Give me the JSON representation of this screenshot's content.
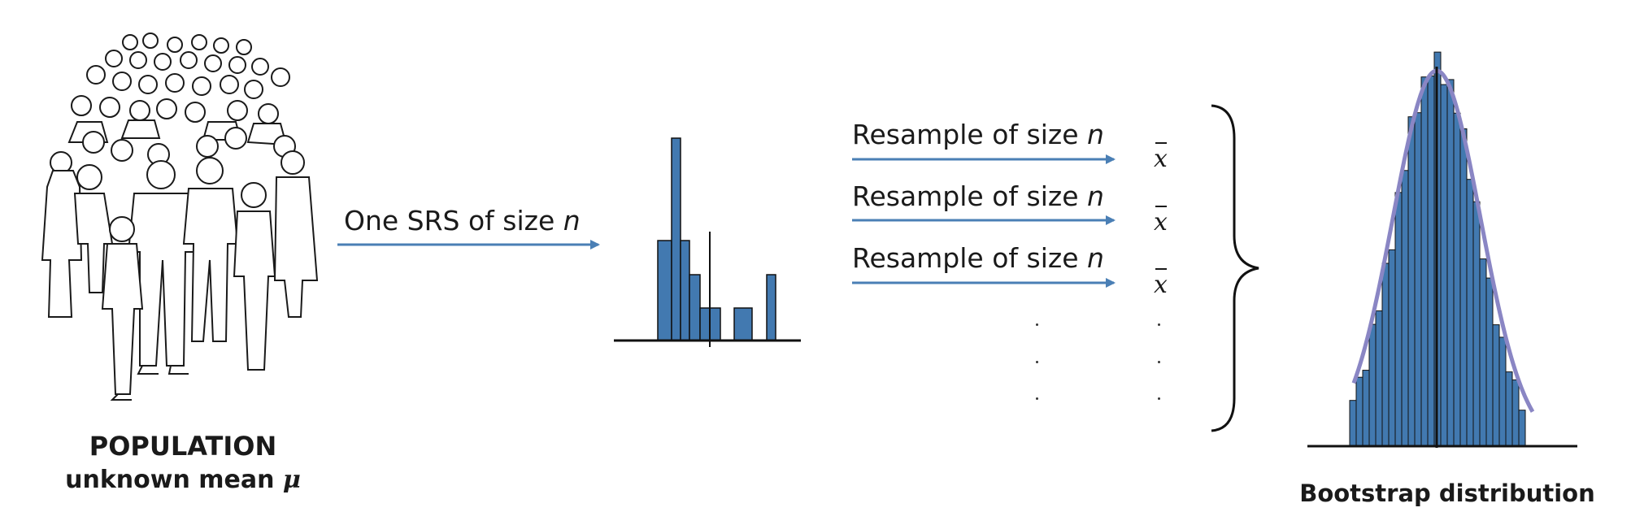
{
  "population": {
    "title": "POPULATION",
    "subtitle_text": "unknown mean",
    "subtitle_symbol": "μ"
  },
  "srs_arrow": {
    "text": "One SRS of size",
    "var": "n"
  },
  "resamples": [
    {
      "text": "Resample of size",
      "var": "n",
      "stat": "x"
    },
    {
      "text": "Resample of size",
      "var": "n",
      "stat": "x"
    },
    {
      "text": "Resample of size",
      "var": "n",
      "stat": "x"
    }
  ],
  "bootstrap": {
    "title": "Bootstrap distribution"
  },
  "colors": {
    "bar_fill": "#4279b0",
    "arrow": "#4a7fb5",
    "curve": "#8a86c4",
    "axis": "#111111"
  }
}
